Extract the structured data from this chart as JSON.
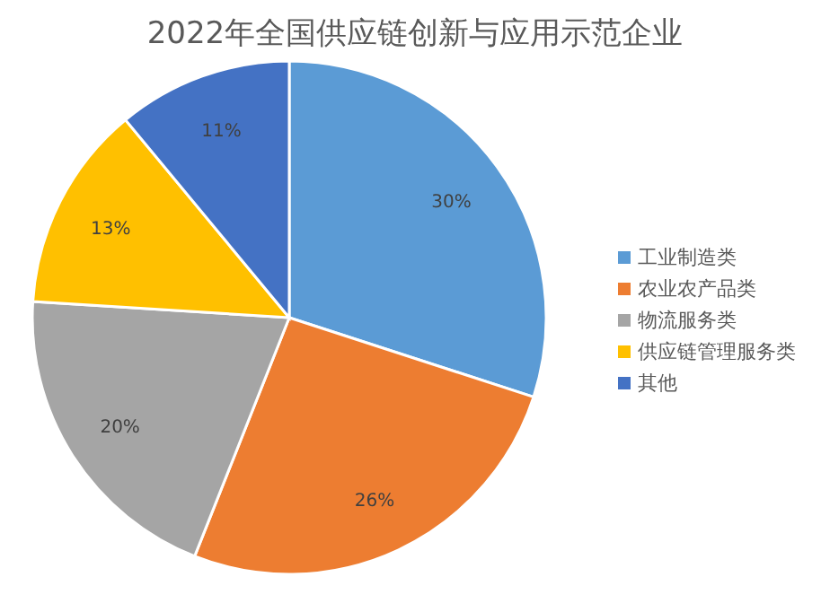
{
  "chart_data": {
    "type": "pie",
    "title": "2022年全国供应链创新与应用示范企业",
    "categories": [
      "工业制造类",
      "农业农产品类",
      "物流服务类",
      "供应链管理服务类",
      "其他"
    ],
    "values": [
      30,
      26,
      20,
      13,
      11
    ],
    "colors": [
      "#5b9bd5",
      "#ed7d31",
      "#a5a5a5",
      "#ffc000",
      "#4472c4"
    ],
    "value_labels": [
      "30%",
      "26%",
      "20%",
      "13%",
      "11%"
    ],
    "legend": "right"
  }
}
